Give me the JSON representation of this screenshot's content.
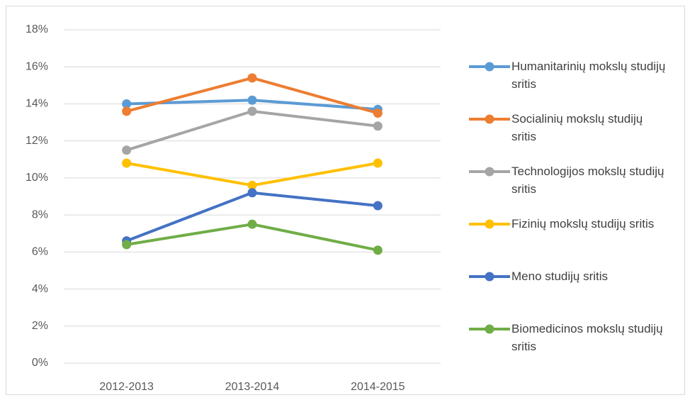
{
  "chart_data": {
    "type": "line",
    "categories": [
      "2012-2013",
      "2013-2014",
      "2014-2015"
    ],
    "series": [
      {
        "name": "Humanitarinių mokslų studijų sritis",
        "color": "#5b9bd5",
        "values": [
          14.0,
          14.2,
          13.7
        ]
      },
      {
        "name": "Socialinių mokslų studijų sritis",
        "color": "#ed7d31",
        "values": [
          13.6,
          15.4,
          13.5
        ]
      },
      {
        "name": "Technologijos mokslų studijų sritis",
        "color": "#a5a5a5",
        "values": [
          11.5,
          13.6,
          12.8
        ]
      },
      {
        "name": "Fizinių mokslų studijų sritis",
        "color": "#ffc000",
        "values": [
          10.8,
          9.6,
          10.8
        ]
      },
      {
        "name": "Meno studijų sritis",
        "color": "#4472c4",
        "values": [
          6.6,
          9.2,
          8.5
        ]
      },
      {
        "name": "Biomedicinos mokslų studijų sritis",
        "color": "#70ad47",
        "values": [
          6.4,
          7.5,
          6.1
        ]
      }
    ],
    "ylim": [
      0,
      18
    ],
    "yticks": [
      {
        "value": 0,
        "label": "0%"
      },
      {
        "value": 2,
        "label": "2%"
      },
      {
        "value": 4,
        "label": "4%"
      },
      {
        "value": 6,
        "label": "6%"
      },
      {
        "value": 8,
        "label": "8%"
      },
      {
        "value": 10,
        "label": "10%"
      },
      {
        "value": 12,
        "label": "12%"
      },
      {
        "value": 14,
        "label": "14%"
      },
      {
        "value": 16,
        "label": "16%"
      },
      {
        "value": 18,
        "label": "18%"
      }
    ],
    "grid": true,
    "legend": "right"
  }
}
